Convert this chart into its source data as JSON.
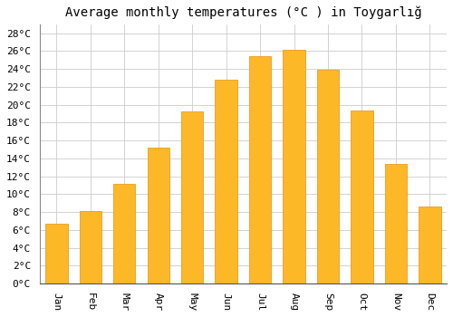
{
  "title": "Average monthly temperatures (°C ) in Toygarlığ",
  "months": [
    "Jan",
    "Feb",
    "Mar",
    "Apr",
    "May",
    "Jun",
    "Jul",
    "Aug",
    "Sep",
    "Oct",
    "Nov",
    "Dec"
  ],
  "values": [
    6.7,
    8.1,
    11.2,
    15.2,
    19.3,
    22.8,
    25.4,
    26.1,
    23.9,
    19.4,
    13.4,
    8.6
  ],
  "bar_color": "#FDB827",
  "bar_edge_color": "#E89010",
  "background_color": "#FFFFFF",
  "grid_color": "#CCCCCC",
  "ylim": [
    0,
    29
  ],
  "yticks": [
    0,
    2,
    4,
    6,
    8,
    10,
    12,
    14,
    16,
    18,
    20,
    22,
    24,
    26,
    28
  ],
  "title_fontsize": 10,
  "tick_fontsize": 8,
  "font_family": "monospace"
}
